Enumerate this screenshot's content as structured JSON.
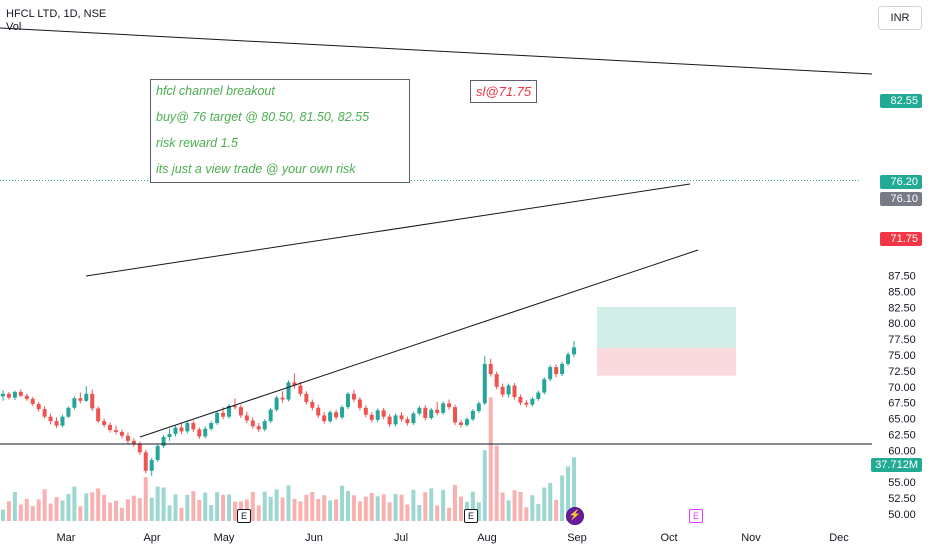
{
  "header": {
    "symbol": "HFCL LTD, 1D, NSE",
    "volume_label": "Vol"
  },
  "currency": "INR",
  "annotations": {
    "note_lines": [
      "hfcl channel breakout",
      "buy@ 76 target @ 80.50, 81.50, 82.55",
      "risk reward 1.5",
      "its just a view trade @ your own risk"
    ],
    "stop_loss": "sl@71.75"
  },
  "price_labels": {
    "target": "82.55",
    "last": "76.20",
    "entry": "76.10",
    "stop": "71.75",
    "volume": "37.712M"
  },
  "colors": {
    "up": "#26a69a",
    "down": "#ef5350",
    "target_zone": "#d2eee9",
    "stop_zone": "#fbdadd",
    "last_price": "#22ab94",
    "entry_label": "#787b86",
    "stop_label": "#f23645",
    "trendline": "#131722",
    "note_text": "#4caf50"
  },
  "icons": {
    "earnings": "E",
    "split": "⚡"
  },
  "chart_data": {
    "type": "candlestick",
    "title": "HFCL LTD, 1D, NSE",
    "ylim": [
      49.5,
      90.5
    ],
    "y_ticks": [
      50.0,
      52.5,
      55.0,
      57.5,
      60.0,
      62.5,
      65.0,
      67.5,
      70.0,
      72.5,
      75.0,
      77.5,
      80.0,
      82.5,
      85.0,
      87.5
    ],
    "x_ticks": [
      "Mar",
      "Apr",
      "May",
      "Jun",
      "Jul",
      "Aug",
      "Sep",
      "Oct",
      "Nov",
      "Dec"
    ],
    "grid": false,
    "position": {
      "entry": 76.1,
      "stop": 71.75,
      "target": 82.55
    },
    "last_price": 76.2,
    "last_volume": "37.712M",
    "ohlc": [
      [
        68.5,
        69.5,
        67.8,
        68.9
      ],
      [
        68.9,
        69.2,
        68.0,
        68.3
      ],
      [
        68.3,
        69.4,
        67.9,
        69.2
      ],
      [
        69.2,
        69.6,
        68.4,
        68.6
      ],
      [
        68.6,
        68.9,
        67.8,
        68.1
      ],
      [
        68.1,
        68.4,
        67.0,
        67.3
      ],
      [
        67.3,
        67.6,
        66.1,
        66.5
      ],
      [
        66.5,
        67.0,
        65.0,
        65.3
      ],
      [
        65.3,
        65.8,
        64.1,
        64.6
      ],
      [
        64.6,
        65.2,
        63.5,
        63.9
      ],
      [
        63.9,
        65.6,
        63.6,
        65.3
      ],
      [
        65.3,
        66.9,
        65.1,
        66.7
      ],
      [
        66.7,
        68.5,
        66.4,
        68.2
      ],
      [
        68.2,
        69.1,
        67.4,
        67.8
      ],
      [
        67.8,
        70.1,
        67.6,
        68.9
      ],
      [
        68.9,
        69.6,
        66.2,
        66.6
      ],
      [
        66.6,
        66.9,
        64.3,
        64.6
      ],
      [
        64.6,
        65.0,
        63.6,
        64.0
      ],
      [
        64.0,
        64.4,
        62.8,
        63.2
      ],
      [
        63.2,
        63.9,
        62.5,
        62.9
      ],
      [
        62.9,
        63.3,
        61.9,
        62.3
      ],
      [
        62.3,
        62.8,
        61.1,
        61.5
      ],
      [
        61.5,
        61.9,
        60.6,
        61.0
      ],
      [
        61.0,
        61.4,
        59.3,
        59.7
      ],
      [
        59.7,
        60.1,
        56.4,
        56.8
      ],
      [
        56.8,
        58.8,
        56.0,
        58.5
      ],
      [
        58.5,
        60.9,
        58.2,
        60.7
      ],
      [
        60.7,
        62.4,
        60.4,
        62.1
      ],
      [
        62.1,
        63.4,
        61.5,
        62.6
      ],
      [
        62.6,
        63.9,
        62.2,
        63.6
      ],
      [
        63.6,
        64.2,
        62.6,
        63.0
      ],
      [
        63.0,
        64.6,
        62.7,
        64.3
      ],
      [
        64.3,
        64.7,
        62.9,
        63.3
      ],
      [
        63.3,
        63.6,
        61.8,
        62.2
      ],
      [
        62.2,
        63.8,
        61.9,
        63.4
      ],
      [
        63.4,
        64.6,
        63.1,
        64.3
      ],
      [
        64.3,
        66.2,
        64.0,
        65.9
      ],
      [
        65.9,
        66.8,
        64.9,
        65.3
      ],
      [
        65.3,
        67.3,
        65.0,
        67.0
      ],
      [
        67.0,
        68.2,
        66.4,
        66.8
      ],
      [
        66.8,
        67.2,
        65.1,
        65.5
      ],
      [
        65.5,
        66.1,
        64.3,
        64.7
      ],
      [
        64.7,
        65.2,
        63.4,
        63.8
      ],
      [
        63.8,
        64.3,
        62.9,
        63.3
      ],
      [
        63.3,
        64.9,
        63.0,
        64.6
      ],
      [
        64.6,
        66.7,
        64.3,
        66.4
      ],
      [
        66.4,
        68.6,
        66.1,
        68.3
      ],
      [
        68.3,
        69.3,
        67.5,
        68.0
      ],
      [
        68.0,
        71.0,
        67.7,
        70.7
      ],
      [
        70.7,
        72.1,
        69.7,
        70.2
      ],
      [
        70.2,
        70.8,
        68.5,
        68.9
      ],
      [
        68.9,
        69.3,
        67.2,
        67.6
      ],
      [
        67.6,
        68.0,
        66.3,
        66.7
      ],
      [
        66.7,
        67.2,
        65.1,
        65.5
      ],
      [
        65.5,
        66.0,
        64.2,
        64.6
      ],
      [
        64.6,
        66.3,
        64.3,
        66.0
      ],
      [
        66.0,
        66.4,
        64.8,
        65.2
      ],
      [
        65.2,
        67.1,
        64.9,
        66.8
      ],
      [
        66.8,
        69.2,
        66.5,
        68.9
      ],
      [
        68.9,
        69.5,
        67.6,
        68.0
      ],
      [
        68.0,
        68.4,
        66.3,
        66.7
      ],
      [
        66.7,
        67.1,
        65.2,
        65.6
      ],
      [
        65.6,
        66.0,
        64.4,
        64.8
      ],
      [
        64.8,
        66.6,
        64.5,
        66.3
      ],
      [
        66.3,
        66.7,
        64.9,
        65.3
      ],
      [
        65.3,
        65.7,
        63.7,
        64.1
      ],
      [
        64.1,
        65.8,
        63.8,
        65.5
      ],
      [
        65.5,
        66.0,
        64.5,
        64.9
      ],
      [
        64.9,
        65.3,
        63.9,
        64.3
      ],
      [
        64.3,
        66.1,
        64.0,
        65.8
      ],
      [
        65.8,
        67.0,
        65.5,
        66.7
      ],
      [
        66.7,
        67.1,
        64.7,
        65.1
      ],
      [
        65.1,
        66.7,
        64.8,
        66.4
      ],
      [
        66.4,
        67.6,
        65.5,
        65.9
      ],
      [
        65.9,
        67.7,
        65.6,
        67.4
      ],
      [
        67.4,
        68.0,
        66.4,
        66.8
      ],
      [
        66.8,
        67.2,
        64.0,
        64.4
      ],
      [
        64.4,
        64.8,
        63.6,
        64.0
      ],
      [
        64.0,
        65.2,
        63.7,
        64.9
      ],
      [
        64.9,
        66.5,
        64.6,
        66.2
      ],
      [
        66.2,
        67.7,
        65.9,
        67.4
      ],
      [
        67.4,
        74.8,
        67.1,
        73.6
      ],
      [
        73.6,
        74.4,
        71.6,
        72.0
      ],
      [
        72.0,
        72.4,
        69.6,
        70.0
      ],
      [
        70.0,
        70.5,
        68.4,
        68.8
      ],
      [
        68.8,
        70.5,
        68.3,
        70.2
      ],
      [
        70.2,
        70.6,
        68.0,
        68.4
      ],
      [
        68.4,
        68.8,
        67.1,
        67.5
      ],
      [
        67.5,
        67.9,
        66.8,
        67.2
      ],
      [
        67.2,
        68.4,
        66.9,
        68.1
      ],
      [
        68.1,
        69.4,
        67.8,
        69.1
      ],
      [
        69.1,
        71.5,
        68.8,
        71.2
      ],
      [
        71.2,
        73.4,
        70.9,
        73.1
      ],
      [
        73.1,
        73.5,
        71.5,
        72.0
      ],
      [
        72.0,
        73.9,
        71.7,
        73.6
      ],
      [
        73.6,
        75.4,
        73.3,
        75.1
      ],
      [
        75.1,
        77.2,
        74.7,
        76.2
      ]
    ],
    "volume_max_value": 9.5
  }
}
